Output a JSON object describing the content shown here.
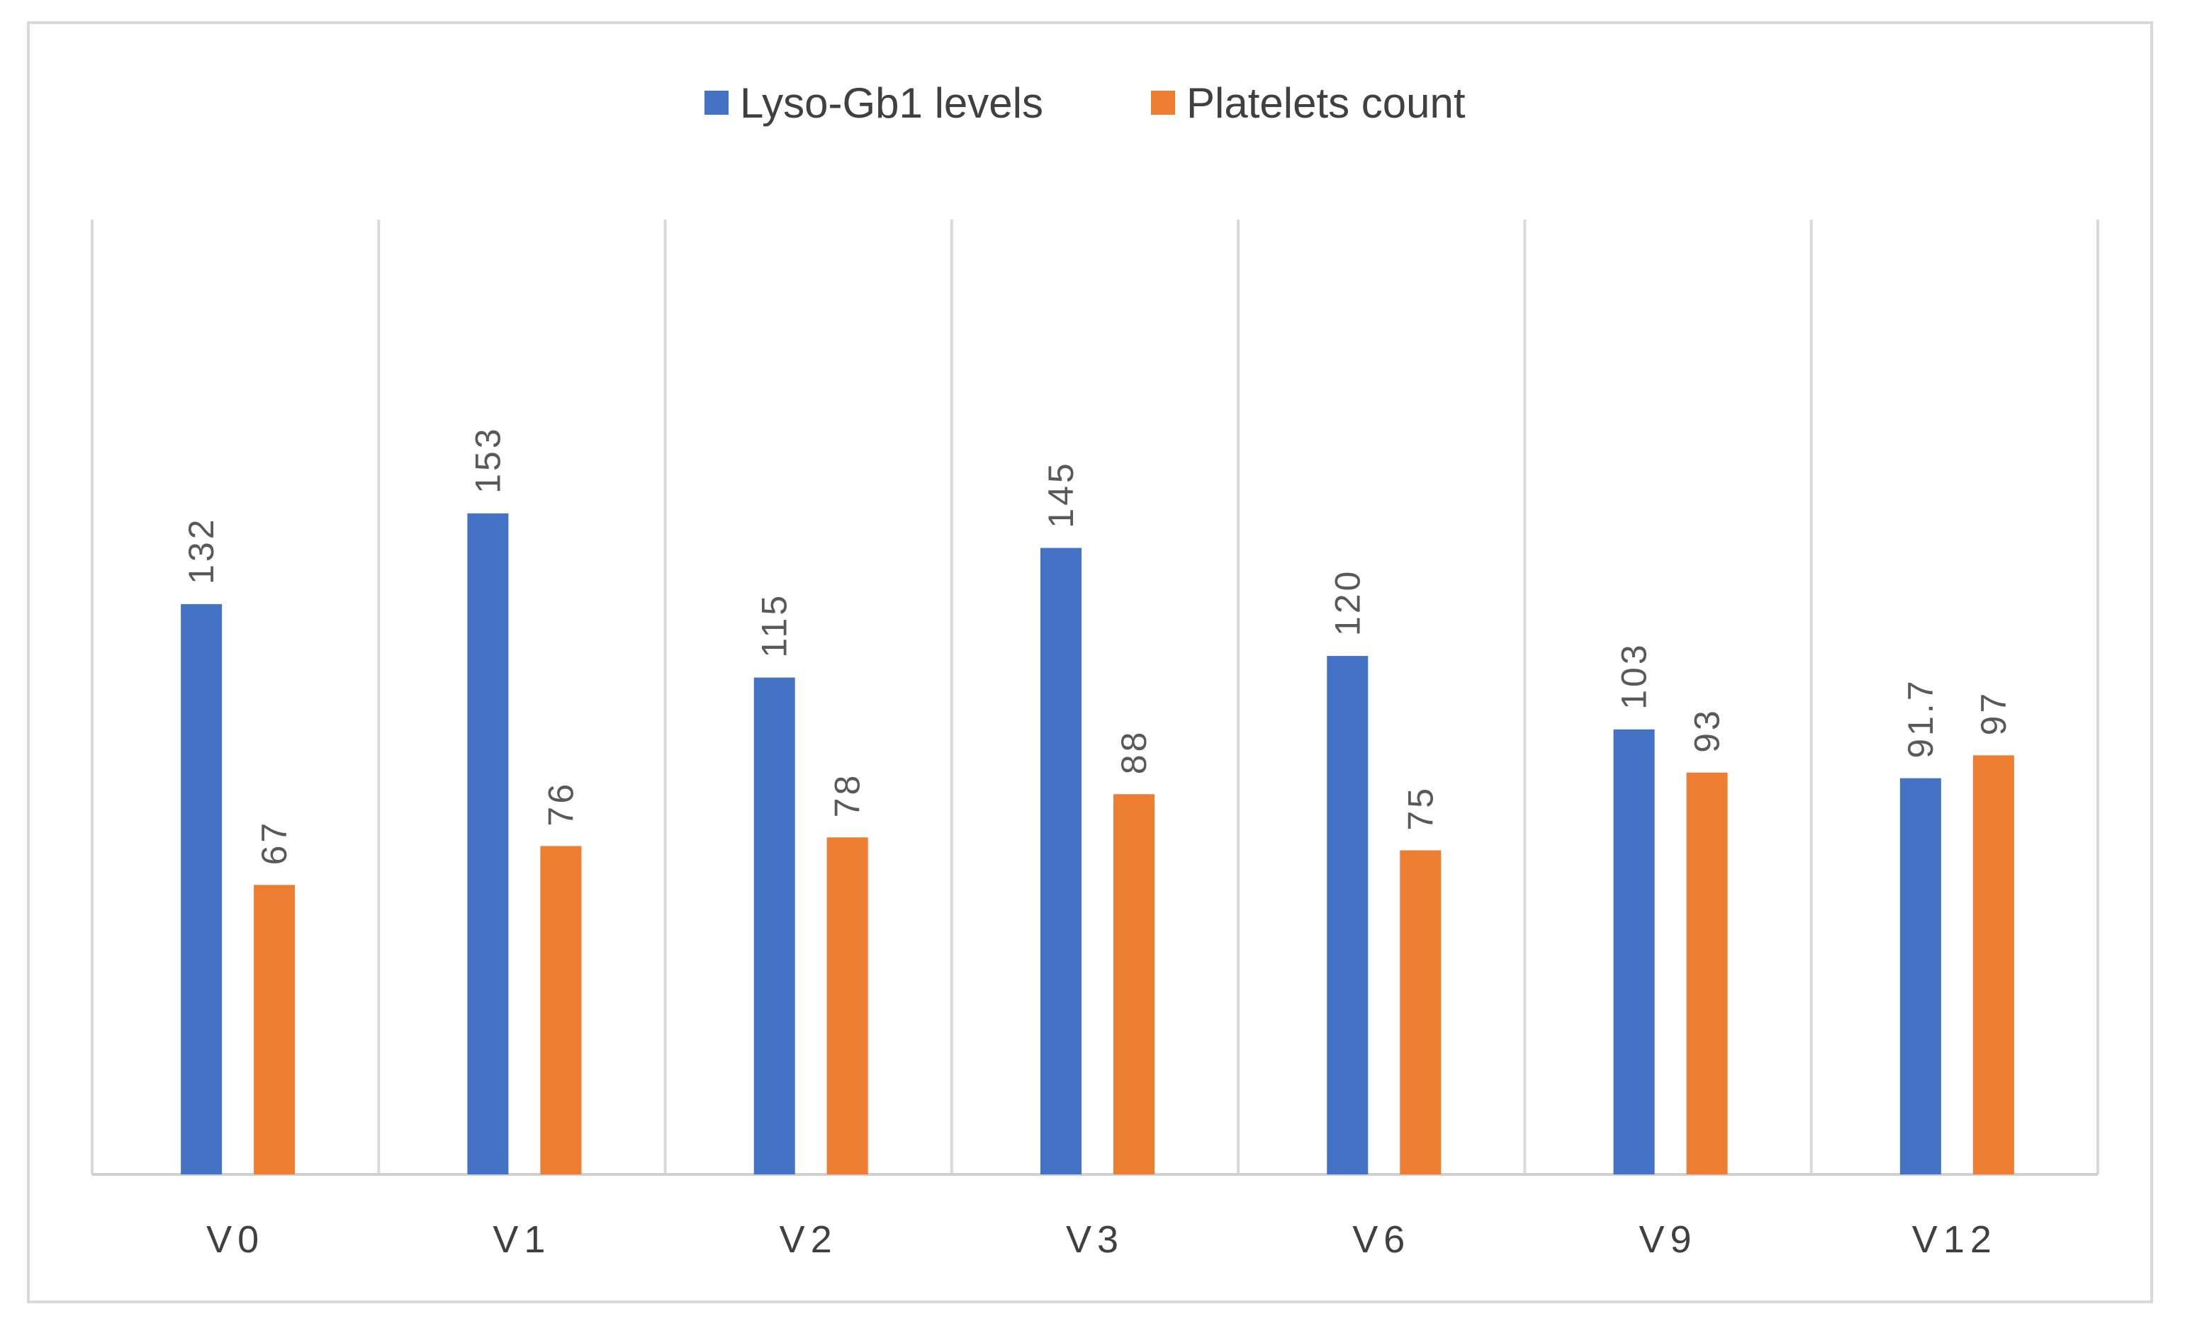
{
  "chart_data": {
    "type": "bar",
    "title": "",
    "xlabel": "",
    "ylabel": "",
    "grid": "vertical category separators",
    "legend_position": "top-center",
    "categories": [
      "V0",
      "V1",
      "V2",
      "V3",
      "V6",
      "V9",
      "V12"
    ],
    "series": [
      {
        "name": "Lyso-Gb1 levels",
        "color": "#4472c4",
        "values": [
          132,
          153,
          115,
          145,
          120,
          103,
          91.7
        ],
        "labels": [
          "132",
          "153",
          "115",
          "145",
          "120",
          "103",
          "91.7"
        ]
      },
      {
        "name": "Platelets count",
        "color": "#ed7d31",
        "values": [
          67,
          76,
          78,
          88,
          75,
          93,
          97
        ],
        "labels": [
          "67",
          "76",
          "78",
          "88",
          "75",
          "93",
          "97"
        ]
      }
    ],
    "ylim": [
      0,
      221
    ]
  }
}
